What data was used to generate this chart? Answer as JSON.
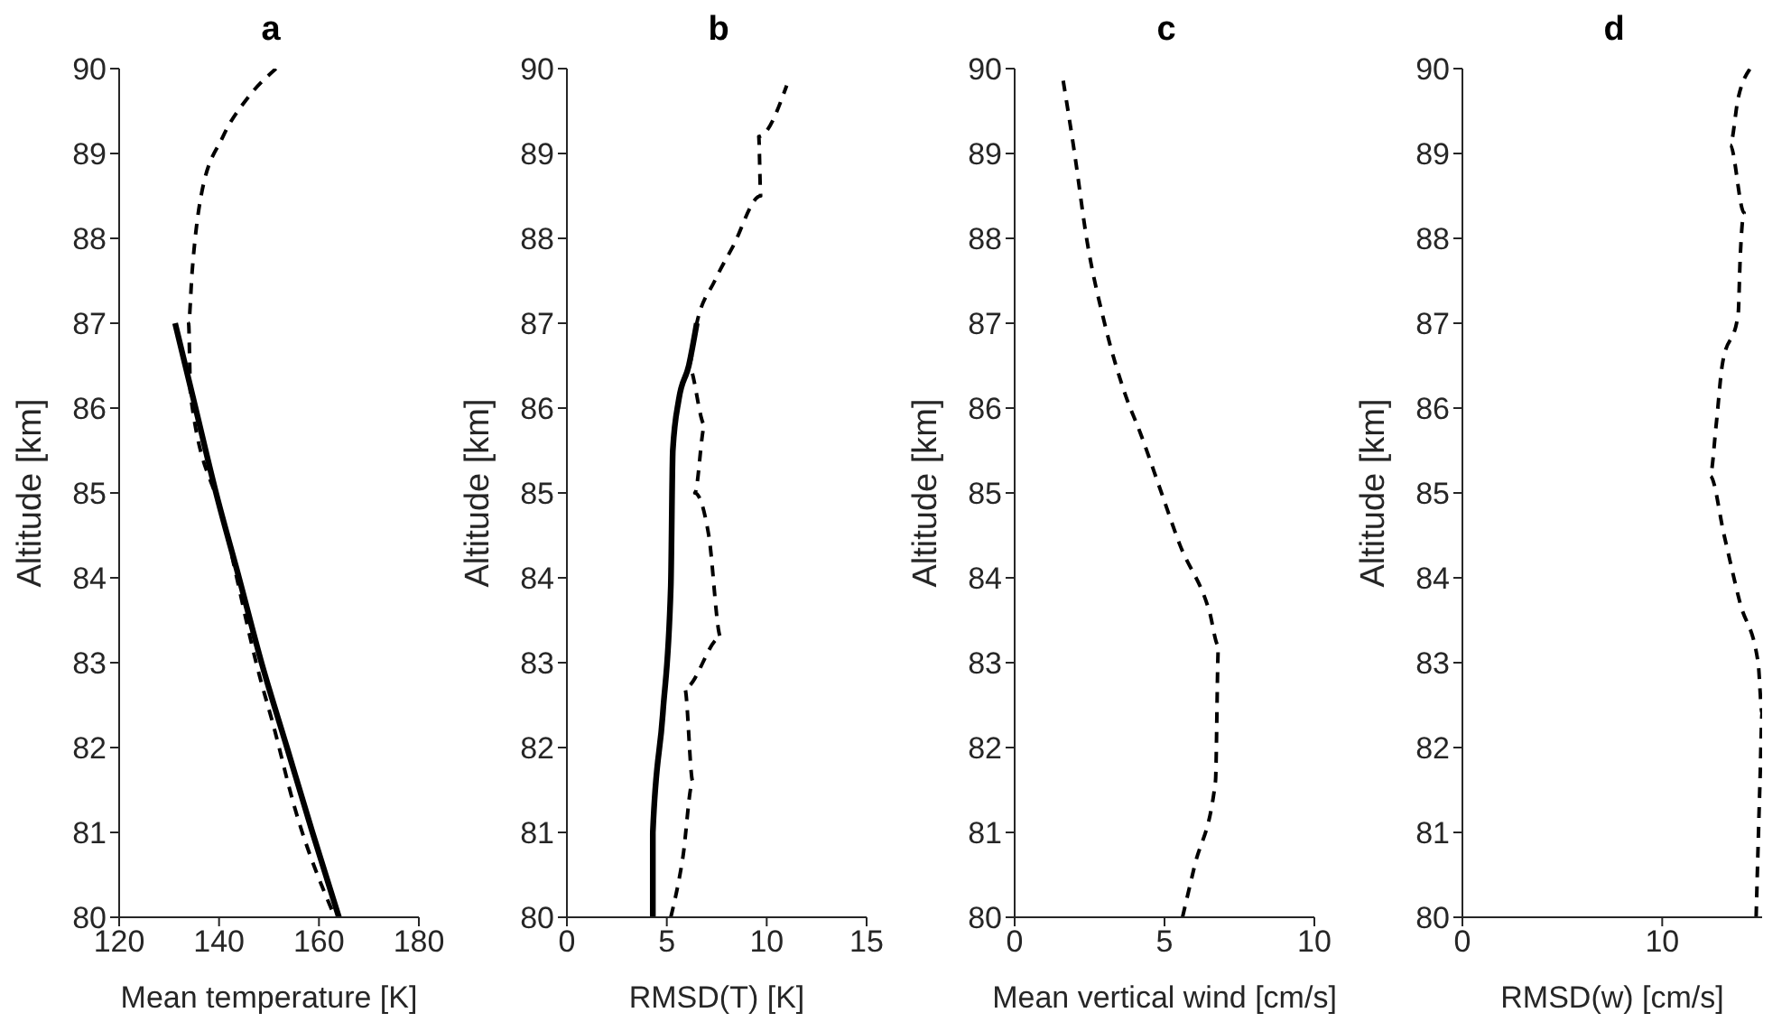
{
  "chart_data": [
    {
      "type": "line",
      "title": "a",
      "xlabel": "Mean temperature [K]",
      "ylabel": "Altitude [km]",
      "xlim": [
        120,
        180
      ],
      "xticks": [
        120,
        140,
        160,
        180
      ],
      "ylim": [
        80,
        90
      ],
      "yticks": [
        80,
        81,
        82,
        83,
        84,
        85,
        86,
        87,
        88,
        89,
        90
      ],
      "series": [
        {
          "color": "#000000",
          "line_style": "solid",
          "x": [
            131.2,
            135.3,
            139.4,
            144.0,
            148.5,
            153.6,
            158.7,
            164.0
          ],
          "values": [
            87,
            86,
            85,
            84,
            83,
            82,
            81,
            80
          ]
        },
        {
          "color": "#000000",
          "line_style": "dashed",
          "x": [
            151.4,
            145.8,
            140.8,
            136.4,
            134.6,
            133.9,
            134.3,
            140.8,
            148.3,
            150.7,
            155.1,
            163.2
          ],
          "values": [
            90,
            89.66,
            89.2,
            88.5,
            87.6,
            87,
            86.15,
            84.7,
            82.8,
            82.3,
            81.3,
            80
          ]
        }
      ]
    },
    {
      "type": "line",
      "title": "b",
      "xlabel": "RMSD(T) [K]",
      "ylabel": "Altitude [km]",
      "xlim": [
        0,
        15
      ],
      "xticks": [
        0,
        5,
        10,
        15
      ],
      "ylim": [
        80,
        90
      ],
      "yticks": [
        80,
        81,
        82,
        83,
        84,
        85,
        86,
        87,
        88,
        89,
        90
      ],
      "series": [
        {
          "color": "#000000",
          "line_style": "solid",
          "x": [
            4.3,
            4.3,
            4.8,
            5.2,
            5.3,
            5.6,
            6.1,
            6.5
          ],
          "values": [
            80,
            81,
            82.4,
            83.9,
            85.5,
            86.1,
            86.5,
            87
          ]
        },
        {
          "color": "#000000",
          "line_style": "dashed",
          "x": [
            5.2,
            5.8,
            6.3,
            5.9,
            7.7,
            7.1,
            6.4,
            6.9,
            6.1,
            6.5,
            7.4,
            8.3,
            9.7,
            9.6,
            11.0
          ],
          "values": [
            80,
            80.7,
            81.6,
            82.7,
            83.3,
            84.5,
            85,
            85.8,
            86.5,
            87,
            87.5,
            87.9,
            88.5,
            89.2,
            89.8
          ]
        }
      ]
    },
    {
      "type": "line",
      "title": "c",
      "xlabel": "Mean vertical wind [cm/s]",
      "ylabel": "Altitude [km]",
      "xlim": [
        0,
        10
      ],
      "xticks": [
        0,
        5,
        10
      ],
      "ylim": [
        80,
        90
      ],
      "yticks": [
        80,
        81,
        82,
        83,
        84,
        85,
        86,
        87,
        88,
        89,
        90
      ],
      "series": [
        {
          "color": "#000000",
          "line_style": "dashed",
          "x": [
            5.6,
            6.0,
            6.7,
            6.8,
            6.5,
            5.5,
            4.9,
            4.2,
            3.7,
            3.0,
            2.4,
            2.0,
            1.6
          ],
          "values": [
            80,
            80.6,
            81.6,
            83.2,
            83.6,
            84.4,
            85,
            85.7,
            86.15,
            87,
            88,
            89,
            89.9
          ]
        }
      ]
    },
    {
      "type": "line",
      "title": "d",
      "xlabel": "RMSD(w) [cm/s]",
      "ylabel": "Altitude [km]",
      "xlim": [
        0,
        15
      ],
      "xticks": [
        0,
        10
      ],
      "ylim": [
        80,
        90
      ],
      "yticks": [
        80,
        81,
        82,
        83,
        84,
        85,
        86,
        87,
        88,
        89,
        90
      ],
      "series": [
        {
          "color": "#000000",
          "line_style": "dashed",
          "x": [
            14.7,
            14.9,
            15.0,
            14.8,
            13.9,
            13.1,
            12.4,
            12.7,
            13.0,
            13.8,
            13.9,
            14.1,
            13.4,
            13.8,
            14.4
          ],
          "values": [
            80,
            81.65,
            82.4,
            83,
            83.7,
            84.5,
            85.2,
            85.8,
            86.5,
            87.1,
            87.75,
            88.3,
            89.1,
            89.65,
            90
          ]
        }
      ]
    }
  ]
}
